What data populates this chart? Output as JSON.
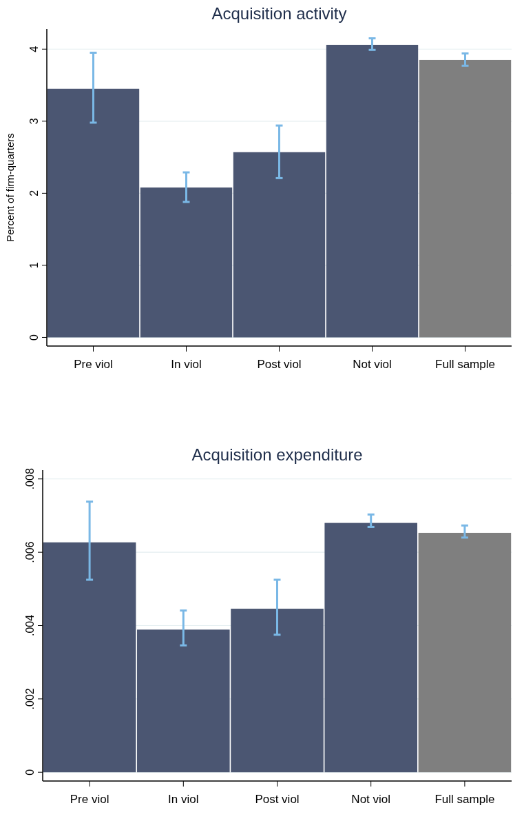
{
  "chart_data": [
    {
      "type": "bar",
      "title": "Acquisition activity",
      "ylabel": "Percent of firm-quarters",
      "categories": [
        "Pre viol",
        "In viol",
        "Post viol",
        "Not viol",
        "Full sample"
      ],
      "values": [
        3.45,
        2.08,
        2.57,
        4.06,
        3.85
      ],
      "colors": [
        "#4b5672",
        "#4b5672",
        "#4b5672",
        "#4b5672",
        "#7f7f7f"
      ],
      "errors": [
        [
          2.98,
          3.95
        ],
        [
          1.88,
          2.29
        ],
        [
          2.21,
          2.94
        ],
        [
          3.99,
          4.15
        ],
        [
          3.77,
          3.94
        ]
      ],
      "ylim": [
        -0.12,
        4.28
      ],
      "yticks": [
        0,
        1,
        2,
        3,
        4
      ],
      "grid": "y"
    },
    {
      "type": "bar",
      "title": "Acquisition expenditure",
      "categories": [
        "Pre viol",
        "In viol",
        "Post viol",
        "Not viol",
        "Full sample"
      ],
      "values": [
        0.00627,
        0.00389,
        0.00446,
        0.0068,
        0.00653
      ],
      "colors": [
        "#4b5672",
        "#4b5672",
        "#4b5672",
        "#4b5672",
        "#7f7f7f"
      ],
      "errors": [
        [
          0.00525,
          0.00738
        ],
        [
          0.00346,
          0.00441
        ],
        [
          0.00375,
          0.00525
        ],
        [
          0.00669,
          0.00703
        ],
        [
          0.0064,
          0.00673
        ]
      ],
      "ylim": [
        -0.00024,
        0.00824
      ],
      "yticks": [
        {
          "value": 0,
          "label": "0"
        },
        {
          "value": 0.002,
          "label": ".002"
        },
        {
          "value": 0.004,
          "label": ".004"
        },
        {
          "value": 0.006,
          "label": ".006"
        },
        {
          "value": 0.008,
          "label": ".008"
        }
      ],
      "grid": "y"
    }
  ]
}
